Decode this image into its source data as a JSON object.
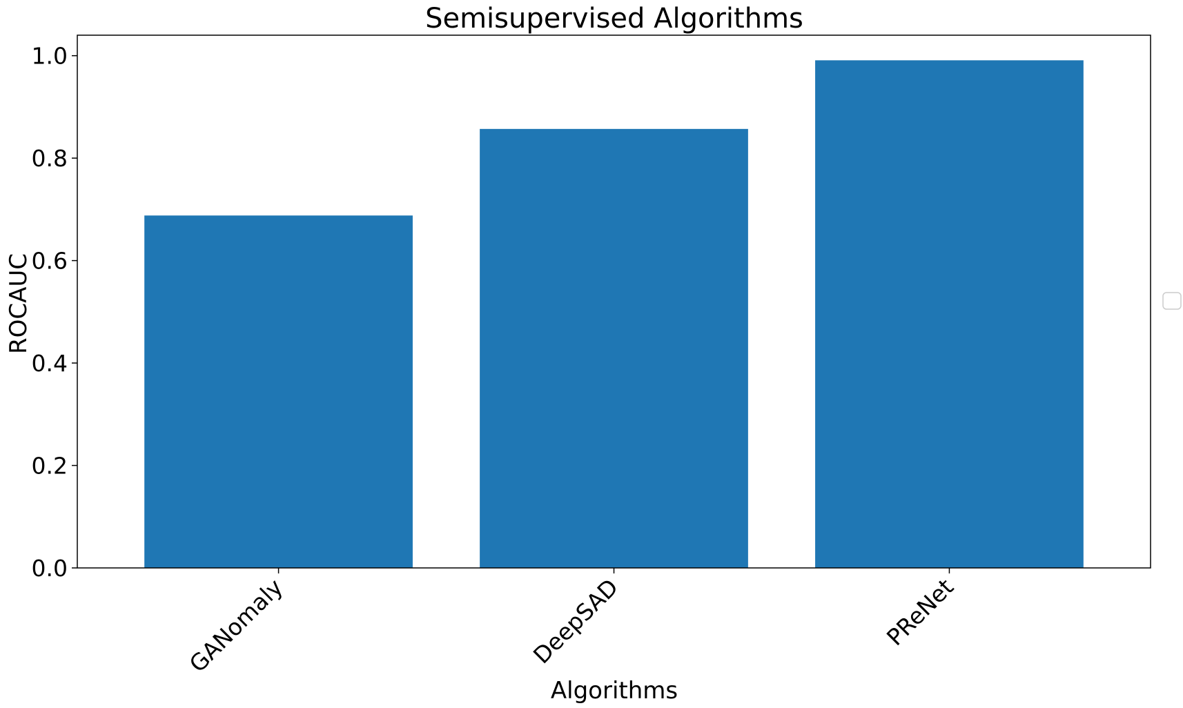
{
  "chart_data": {
    "type": "bar",
    "title": "Semisupervised Algorithms",
    "xlabel": "Algorithms",
    "ylabel": "ROCAUC",
    "categories": [
      "GANomaly",
      "DeepSAD",
      "PReNet"
    ],
    "values": [
      0.688,
      0.857,
      0.991
    ],
    "ylim": [
      0,
      1.04
    ],
    "yticks": [
      0.0,
      0.2,
      0.4,
      0.6,
      0.8,
      1.0
    ],
    "ytick_labels": [
      "0.0",
      "0.2",
      "0.4",
      "0.6",
      "0.8",
      "1.0"
    ],
    "grid": false,
    "legend": "right (empty)",
    "bar_color": "#1f77b4"
  }
}
